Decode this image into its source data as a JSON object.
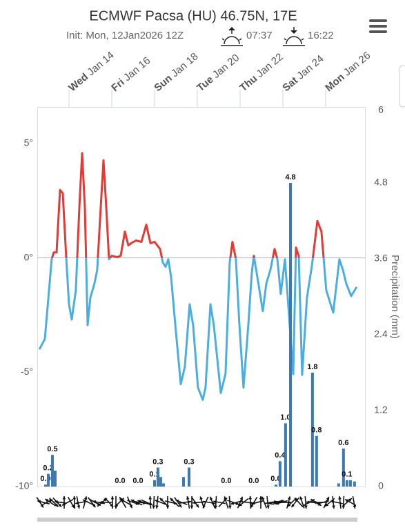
{
  "chart_data": {
    "type": "line",
    "title": "ECMWF Pacsa (HU) 46.75N, 17E",
    "subtitle": "Init: Mon, 12Jan2026 12Z",
    "sunrise": "07:37",
    "sunset": "16:22",
    "y2_label": "Precipitation (mm)",
    "xlim": [
      0,
      360
    ],
    "x_labels": [
      {
        "value": 36,
        "weekday": "Wed",
        "date": "Jan 14"
      },
      {
        "value": 84,
        "weekday": "Fri",
        "date": "Jan 16"
      },
      {
        "value": 132,
        "weekday": "Sun",
        "date": "Jan 18"
      },
      {
        "value": 180,
        "weekday": "Tue",
        "date": "Jan 20"
      },
      {
        "value": 228,
        "weekday": "Thu",
        "date": "Jan 22"
      },
      {
        "value": 276,
        "weekday": "Sat",
        "date": "Jan 24"
      },
      {
        "value": 324,
        "weekday": "Mon",
        "date": "Jan 26"
      }
    ],
    "ylim": [
      -10,
      6.6
    ],
    "yticks": [
      {
        "value": 5,
        "label": "5°"
      },
      {
        "value": 0,
        "label": "0°"
      },
      {
        "value": -5,
        "label": "-5°"
      },
      {
        "value": -10,
        "label": "-10°"
      }
    ],
    "y2lim": [
      0,
      6
    ],
    "y2ticks": [
      0,
      1.2,
      2.4,
      3.6,
      4.8,
      6
    ],
    "series": [
      {
        "type": "line",
        "axis": "y",
        "color_above": "#e53935",
        "color_below": "#4aaee3",
        "x": [
          2.7,
          8.9,
          16.6,
          19.0,
          22.1,
          25.9,
          29.0,
          32.9,
          36.0,
          39.1,
          43.7,
          47.6,
          50.7,
          53.8,
          56.9,
          60.0,
          64.6,
          67.7,
          71.6,
          74.7,
          77.8,
          80.9,
          84.0,
          90.2,
          94.0,
          98.7,
          102.6,
          105.7,
          111.1,
          117.3,
          122.7,
          127.4,
          132.0,
          138.2,
          141.3,
          144.4,
          147.4,
          150.5,
          156.0,
          161.4,
          166.0,
          171.4,
          175.3,
          180.7,
          186.1,
          189.2,
          194.7,
          198.5,
          206.3,
          211.7,
          216.3,
          219.4,
          223.3,
          227.2,
          231.8,
          237.2,
          241.1,
          243.4,
          247.3,
          253.5,
          257.4,
          262.0,
          266.7,
          269.8,
          273.6,
          278.3,
          283.7,
          287.6,
          290.7,
          293.8,
          297.6,
          303.0,
          308.5,
          314.7,
          319.3,
          324.7,
          332.5,
          339.4,
          343.3,
          347.1,
          352.6,
          358.8
        ],
        "values": [
          -4.0,
          -3.55,
          -0.06,
          0.24,
          0.24,
          2.97,
          2.82,
          0.0,
          -2.03,
          -2.7,
          -1.42,
          2.21,
          4.58,
          2.21,
          -2.94,
          -1.73,
          -1.12,
          -0.52,
          2.21,
          4.27,
          2.21,
          -0.06,
          0.09,
          0.03,
          0.09,
          1.15,
          0.55,
          0.64,
          0.76,
          0.7,
          1.45,
          0.64,
          0.7,
          0.39,
          -0.21,
          -0.39,
          -0.06,
          -0.82,
          -3.24,
          -5.52,
          -4.76,
          -2.03,
          -2.94,
          -5.67,
          -6.21,
          -5.67,
          -2.03,
          -2.94,
          -5.91,
          -5.06,
          -0.21,
          0.7,
          -0.06,
          -2.94,
          -5.67,
          -2.94,
          -0.67,
          0.09,
          -0.82,
          -2.33,
          -1.12,
          -0.52,
          0.39,
          -0.06,
          -1.58,
          -0.06,
          -2.94,
          -5.09,
          0.45,
          0.09,
          -5.12,
          -1.73,
          -0.36,
          1.61,
          1.15,
          -1.42,
          -2.39,
          -0.06,
          -0.52,
          -1.12,
          -1.67,
          -1.27
        ]
      },
      {
        "type": "bar",
        "axis": "y2",
        "color": "#3b79b3",
        "x": [
          9.7,
          12.8,
          17.4,
          20.5,
          93.3,
          113.4,
          132.0,
          135.8,
          138.9,
          142.0,
          164.5,
          170.7,
          212.4,
          243.3,
          268.2,
          272.8,
          279.0,
          284.5,
          309.2,
          313.8,
          338.6,
          344.0,
          347.9,
          351.8,
          356.4
        ],
        "values": [
          0.03,
          0.2,
          0.5,
          0.25,
          0,
          0,
          0.1,
          0.3,
          0.15,
          0.05,
          0.15,
          0.3,
          0,
          0,
          0.03,
          0.4,
          1.0,
          4.8,
          1.8,
          0.8,
          0.05,
          0.6,
          0.1,
          0.1,
          0.08
        ],
        "value_labels": [
          "0.0",
          "0.2",
          "0.5",
          null,
          "0.0",
          "0.0",
          "0.1",
          "0.3",
          null,
          null,
          null,
          "0.3",
          "0.0",
          "0.0",
          "0.0",
          "0.4",
          "1.0",
          "4.8",
          "1.8",
          "0.8",
          null,
          "0.6",
          "0.1",
          null,
          null
        ]
      }
    ]
  }
}
